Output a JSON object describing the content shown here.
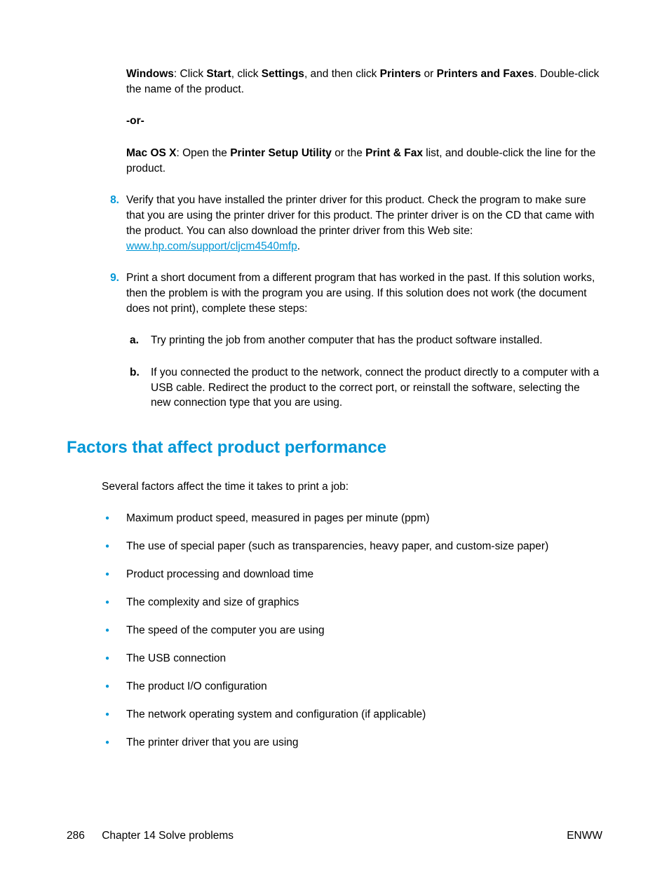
{
  "colors": {
    "accent": "#0096d6",
    "text": "#000000",
    "background": "#ffffff"
  },
  "typography": {
    "body_fontsize": 15.5,
    "heading_fontsize": 24,
    "font_family": "Arial"
  },
  "windows_para": {
    "os": "Windows",
    "t1": ": Click ",
    "start": "Start",
    "t2": ", click ",
    "settings": "Settings",
    "t3": ", and then click ",
    "printers": "Printers",
    "t4": " or ",
    "paf": "Printers and Faxes",
    "t5": ". Double-click the name of the product."
  },
  "or_label": "-or-",
  "mac_para": {
    "os": "Mac OS X",
    "t1": ": Open the ",
    "psu": "Printer Setup Utility",
    "t2": " or the ",
    "pf": "Print & Fax",
    "t3": " list, and double-click the line for the product."
  },
  "item8": {
    "marker": "8.",
    "t1": "Verify that you have installed the printer driver for this product. Check the program to make sure that you are using the printer driver for this product. The printer driver is on the CD that came with the product. You can also download the printer driver from this Web site: ",
    "link": "www.hp.com/support/cljcm4540mfp",
    "t2": "."
  },
  "item9": {
    "marker": "9.",
    "body": "Print a short document from a different program that has worked in the past. If this solution works, then the problem is with the program you are using. If this solution does not work (the document does not print), complete these steps:",
    "sub_a_marker": "a.",
    "sub_a_body": "Try printing the job from another computer that has the product software installed.",
    "sub_b_marker": "b.",
    "sub_b_body": "If you connected the product to the network, connect the product directly to a computer with a USB cable. Redirect the product to the correct port, or reinstall the software, selecting the new connection type that you are using."
  },
  "heading": "Factors that affect product performance",
  "intro": "Several factors affect the time it takes to print a job:",
  "bullets": [
    "Maximum product speed, measured in pages per minute (ppm)",
    "The use of special paper (such as transparencies, heavy paper, and custom-size paper)",
    "Product processing and download time",
    "The complexity and size of graphics",
    "The speed of the computer you are using",
    "The USB connection",
    "The product I/O configuration",
    "The network operating system and configuration (if applicable)",
    "The printer driver that you are using"
  ],
  "footer": {
    "page_number": "286",
    "chapter": "Chapter 14   Solve problems",
    "right": "ENWW"
  }
}
